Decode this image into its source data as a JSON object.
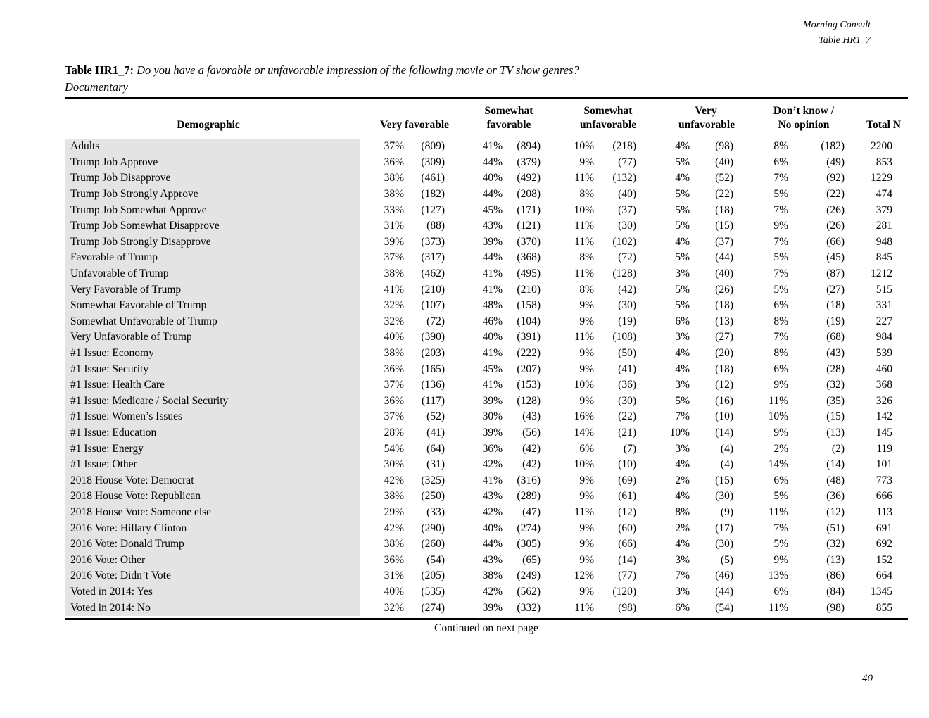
{
  "doc_header": {
    "brand": "Morning Consult",
    "table_ref": "Table HR1_7"
  },
  "title": {
    "label": "Table HR1_7:",
    "question": "Do you have a favorable or unfavorable impression of the following movie or TV show genres?",
    "subtitle": "Documentary"
  },
  "table": {
    "columns": [
      {
        "line1": "",
        "line2": "Demographic"
      },
      {
        "line1": "",
        "line2": "Very favorable"
      },
      {
        "line1": "Somewhat",
        "line2": "favorable"
      },
      {
        "line1": "Somewhat",
        "line2": "unfavorable"
      },
      {
        "line1": "Very",
        "line2": "unfavorable"
      },
      {
        "line1": "Don’t know /",
        "line2": "No opinion"
      },
      {
        "line1": "",
        "line2": "Total N"
      }
    ],
    "rows": [
      [
        "Adults",
        "37%",
        "(809)",
        "41%",
        "(894)",
        "10%",
        "(218)",
        "4%",
        "(98)",
        "8%",
        "(182)",
        "2200"
      ],
      [
        "Trump Job Approve",
        "36%",
        "(309)",
        "44%",
        "(379)",
        "9%",
        "(77)",
        "5%",
        "(40)",
        "6%",
        "(49)",
        "853"
      ],
      [
        "Trump Job Disapprove",
        "38%",
        "(461)",
        "40%",
        "(492)",
        "11%",
        "(132)",
        "4%",
        "(52)",
        "7%",
        "(92)",
        "1229"
      ],
      [
        "Trump Job Strongly Approve",
        "38%",
        "(182)",
        "44%",
        "(208)",
        "8%",
        "(40)",
        "5%",
        "(22)",
        "5%",
        "(22)",
        "474"
      ],
      [
        "Trump Job Somewhat Approve",
        "33%",
        "(127)",
        "45%",
        "(171)",
        "10%",
        "(37)",
        "5%",
        "(18)",
        "7%",
        "(26)",
        "379"
      ],
      [
        "Trump Job Somewhat Disapprove",
        "31%",
        "(88)",
        "43%",
        "(121)",
        "11%",
        "(30)",
        "5%",
        "(15)",
        "9%",
        "(26)",
        "281"
      ],
      [
        "Trump Job Strongly Disapprove",
        "39%",
        "(373)",
        "39%",
        "(370)",
        "11%",
        "(102)",
        "4%",
        "(37)",
        "7%",
        "(66)",
        "948"
      ],
      [
        "Favorable of Trump",
        "37%",
        "(317)",
        "44%",
        "(368)",
        "8%",
        "(72)",
        "5%",
        "(44)",
        "5%",
        "(45)",
        "845"
      ],
      [
        "Unfavorable of Trump",
        "38%",
        "(462)",
        "41%",
        "(495)",
        "11%",
        "(128)",
        "3%",
        "(40)",
        "7%",
        "(87)",
        "1212"
      ],
      [
        "Very Favorable of Trump",
        "41%",
        "(210)",
        "41%",
        "(210)",
        "8%",
        "(42)",
        "5%",
        "(26)",
        "5%",
        "(27)",
        "515"
      ],
      [
        "Somewhat Favorable of Trump",
        "32%",
        "(107)",
        "48%",
        "(158)",
        "9%",
        "(30)",
        "5%",
        "(18)",
        "6%",
        "(18)",
        "331"
      ],
      [
        "Somewhat Unfavorable of Trump",
        "32%",
        "(72)",
        "46%",
        "(104)",
        "9%",
        "(19)",
        "6%",
        "(13)",
        "8%",
        "(19)",
        "227"
      ],
      [
        "Very Unfavorable of Trump",
        "40%",
        "(390)",
        "40%",
        "(391)",
        "11%",
        "(108)",
        "3%",
        "(27)",
        "7%",
        "(68)",
        "984"
      ],
      [
        "#1 Issue: Economy",
        "38%",
        "(203)",
        "41%",
        "(222)",
        "9%",
        "(50)",
        "4%",
        "(20)",
        "8%",
        "(43)",
        "539"
      ],
      [
        "#1 Issue: Security",
        "36%",
        "(165)",
        "45%",
        "(207)",
        "9%",
        "(41)",
        "4%",
        "(18)",
        "6%",
        "(28)",
        "460"
      ],
      [
        "#1 Issue: Health Care",
        "37%",
        "(136)",
        "41%",
        "(153)",
        "10%",
        "(36)",
        "3%",
        "(12)",
        "9%",
        "(32)",
        "368"
      ],
      [
        "#1 Issue: Medicare / Social Security",
        "36%",
        "(117)",
        "39%",
        "(128)",
        "9%",
        "(30)",
        "5%",
        "(16)",
        "11%",
        "(35)",
        "326"
      ],
      [
        "#1 Issue: Women’s Issues",
        "37%",
        "(52)",
        "30%",
        "(43)",
        "16%",
        "(22)",
        "7%",
        "(10)",
        "10%",
        "(15)",
        "142"
      ],
      [
        "#1 Issue: Education",
        "28%",
        "(41)",
        "39%",
        "(56)",
        "14%",
        "(21)",
        "10%",
        "(14)",
        "9%",
        "(13)",
        "145"
      ],
      [
        "#1 Issue: Energy",
        "54%",
        "(64)",
        "36%",
        "(42)",
        "6%",
        "(7)",
        "3%",
        "(4)",
        "2%",
        "(2)",
        "119"
      ],
      [
        "#1 Issue: Other",
        "30%",
        "(31)",
        "42%",
        "(42)",
        "10%",
        "(10)",
        "4%",
        "(4)",
        "14%",
        "(14)",
        "101"
      ],
      [
        "2018 House Vote: Democrat",
        "42%",
        "(325)",
        "41%",
        "(316)",
        "9%",
        "(69)",
        "2%",
        "(15)",
        "6%",
        "(48)",
        "773"
      ],
      [
        "2018 House Vote: Republican",
        "38%",
        "(250)",
        "43%",
        "(289)",
        "9%",
        "(61)",
        "4%",
        "(30)",
        "5%",
        "(36)",
        "666"
      ],
      [
        "2018 House Vote: Someone else",
        "29%",
        "(33)",
        "42%",
        "(47)",
        "11%",
        "(12)",
        "8%",
        "(9)",
        "11%",
        "(12)",
        "113"
      ],
      [
        "2016 Vote: Hillary Clinton",
        "42%",
        "(290)",
        "40%",
        "(274)",
        "9%",
        "(60)",
        "2%",
        "(17)",
        "7%",
        "(51)",
        "691"
      ],
      [
        "2016 Vote: Donald Trump",
        "38%",
        "(260)",
        "44%",
        "(305)",
        "9%",
        "(66)",
        "4%",
        "(30)",
        "5%",
        "(32)",
        "692"
      ],
      [
        "2016 Vote: Other",
        "36%",
        "(54)",
        "43%",
        "(65)",
        "9%",
        "(14)",
        "3%",
        "(5)",
        "9%",
        "(13)",
        "152"
      ],
      [
        "2016 Vote: Didn’t Vote",
        "31%",
        "(205)",
        "38%",
        "(249)",
        "12%",
        "(77)",
        "7%",
        "(46)",
        "13%",
        "(86)",
        "664"
      ],
      [
        "Voted in 2014: Yes",
        "40%",
        "(535)",
        "42%",
        "(562)",
        "9%",
        "(120)",
        "3%",
        "(44)",
        "6%",
        "(84)",
        "1345"
      ],
      [
        "Voted in 2014: No",
        "32%",
        "(274)",
        "39%",
        "(332)",
        "11%",
        "(98)",
        "6%",
        "(54)",
        "11%",
        "(98)",
        "855"
      ]
    ]
  },
  "footer": {
    "continued": "Continued on next page",
    "page_number": "40"
  }
}
